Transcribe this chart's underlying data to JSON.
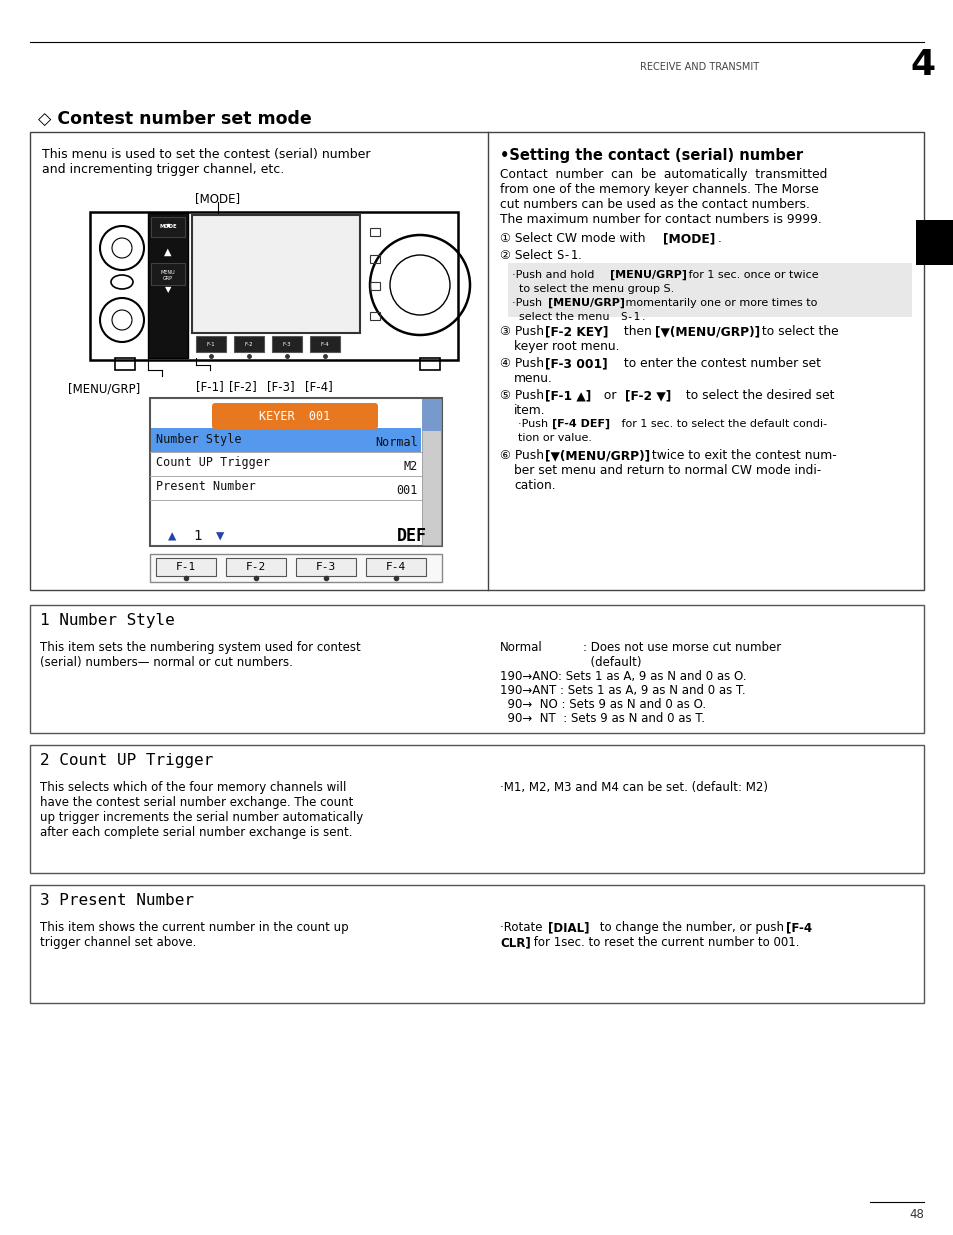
{
  "page_title": "RECEIVE AND TRANSMIT",
  "chapter_num": "4",
  "section_title": "◇ Contest number set mode",
  "bg_color": "#ffffff",
  "page_number": "48"
}
